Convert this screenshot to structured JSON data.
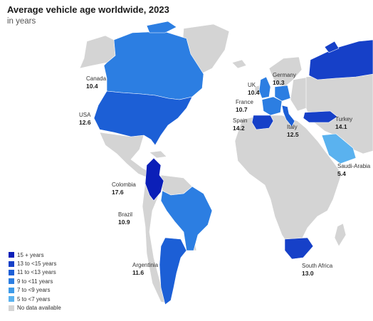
{
  "header": {
    "title": "Average vehicle age worldwide, 2023",
    "subtitle": "in years"
  },
  "colors": {
    "ocean": "#ffffff",
    "no_data": "#d4d4d4",
    "border": "#ffffff"
  },
  "legend": [
    {
      "label": "15 + years",
      "color": "#0b1fb8"
    },
    {
      "label": "13 to <15 years",
      "color": "#1640c8"
    },
    {
      "label": "11 to <13 years",
      "color": "#1c5fd6"
    },
    {
      "label": "9 to <11 years",
      "color": "#2c7ee2"
    },
    {
      "label": "7 to <9 years",
      "color": "#3d9ae9"
    },
    {
      "label": "5 to <7 years",
      "color": "#5ab2ef"
    },
    {
      "label": "No data available",
      "color": "#d4d4d4"
    }
  ],
  "countries": [
    {
      "name": "Canada",
      "value": "10.4",
      "color": "#2c7ee2"
    },
    {
      "name": "USA",
      "value": "12.6",
      "color": "#1c5fd6"
    },
    {
      "name": "Colombia",
      "value": "17.6",
      "color": "#0b1fb8"
    },
    {
      "name": "Brazil",
      "value": "10.9",
      "color": "#2c7ee2"
    },
    {
      "name": "Argentinia",
      "value": "11.6",
      "color": "#1c5fd6"
    },
    {
      "name": "UK",
      "value": "10.4",
      "color": "#2c7ee2"
    },
    {
      "name": "Germany",
      "value": "10.3",
      "color": "#2c7ee2"
    },
    {
      "name": "France",
      "value": "10.7",
      "color": "#2c7ee2"
    },
    {
      "name": "Spain",
      "value": "14.2",
      "color": "#1640c8"
    },
    {
      "name": "Italy",
      "value": "12.5",
      "color": "#1c5fd6"
    },
    {
      "name": "Turkey",
      "value": "14.1",
      "color": "#1640c8"
    },
    {
      "name": "Saudi-Arabia",
      "value": "5.4",
      "color": "#5ab2ef"
    },
    {
      "name": "South Africa",
      "value": "13.0",
      "color": "#1640c8"
    },
    {
      "name": "Russia",
      "value": "",
      "color": "#1640c8"
    }
  ]
}
